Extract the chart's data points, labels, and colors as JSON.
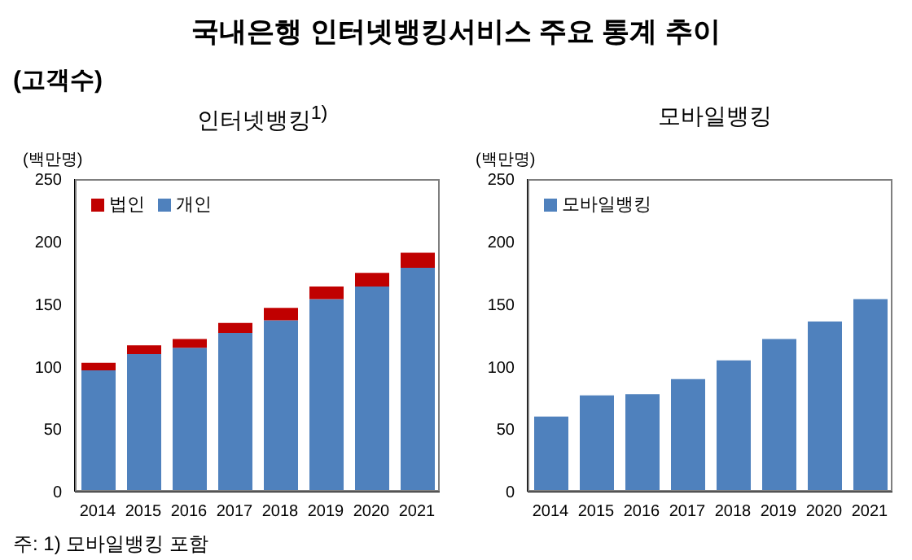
{
  "chart_data": [
    {
      "type": "bar",
      "title": "인터넷뱅킹$^{1)}$",
      "ylabel": "(백만명)",
      "annotations": [
        "국내은행 인터넷뱅킹서비스 주요 통계 추이",
        "(고객수)",
        "주: 1) 모바일뱅킹 포함"
      ],
      "categories": [
        "2014",
        "2015",
        "2016",
        "2017",
        "2018",
        "2019",
        "2020",
        "2021"
      ],
      "stacked": true,
      "series": [
        {
          "name": "개인",
          "color": "#4f81bd",
          "values": [
            97,
            110,
            115,
            127,
            137,
            154,
            164,
            179
          ]
        },
        {
          "name": "법인",
          "color": "#c00000",
          "values": [
            6,
            7,
            7,
            8,
            10,
            10,
            11,
            12
          ]
        }
      ],
      "ylim": [
        0,
        250
      ],
      "yticks": [
        0,
        50,
        100,
        150,
        200,
        250
      ],
      "grid": false,
      "legend": "top left"
    },
    {
      "type": "bar",
      "title": "모바일뱅킹",
      "ylabel": "(백만명)",
      "categories": [
        "2014",
        "2015",
        "2016",
        "2017",
        "2018",
        "2019",
        "2020",
        "2021"
      ],
      "series": [
        {
          "name": "모바일뱅킹",
          "color": "#4f81bd",
          "values": [
            60,
            77,
            78,
            90,
            105,
            122,
            136,
            154
          ]
        }
      ],
      "ylim": [
        0,
        250
      ],
      "yticks": [
        0,
        50,
        100,
        150,
        200,
        250
      ],
      "grid": false,
      "legend": "top left"
    }
  ]
}
